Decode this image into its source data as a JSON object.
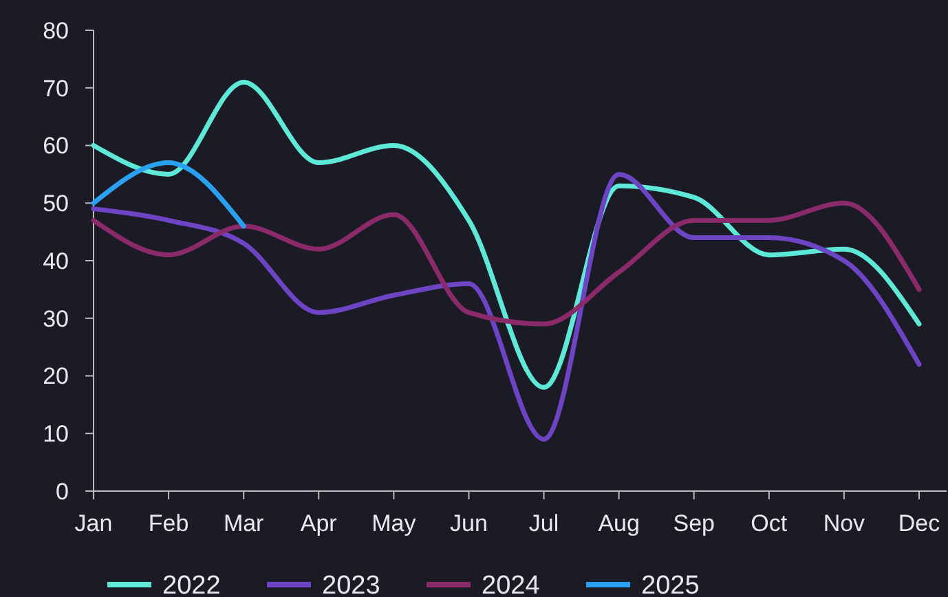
{
  "chart_data": {
    "type": "line",
    "categories": [
      "Jan",
      "Feb",
      "Mar",
      "Apr",
      "May",
      "Jun",
      "Jul",
      "Aug",
      "Sep",
      "Oct",
      "Nov",
      "Dec"
    ],
    "ylim": [
      0,
      80
    ],
    "yticks": [
      0,
      10,
      20,
      30,
      40,
      50,
      60,
      70,
      80
    ],
    "grid": false,
    "legend": "bottom",
    "marker": "none",
    "line_style": "solid",
    "series": [
      {
        "name": "2022",
        "color": "#5ee8d8",
        "values": [
          60,
          55,
          71,
          57,
          60,
          47,
          18,
          53,
          51,
          41,
          42,
          29
        ]
      },
      {
        "name": "2023",
        "color": "#6c44c4",
        "values": [
          49,
          47,
          43,
          31,
          34,
          36,
          9,
          55,
          44,
          44,
          40,
          22
        ]
      },
      {
        "name": "2024",
        "color": "#8a2a6a",
        "values": [
          47,
          41,
          46,
          42,
          48,
          31,
          29,
          38,
          47,
          47,
          50,
          35
        ]
      },
      {
        "name": "2025",
        "color": "#2aa0f0",
        "values": [
          50,
          57,
          46,
          null,
          null,
          null,
          null,
          null,
          null,
          null,
          null,
          null
        ]
      }
    ]
  }
}
